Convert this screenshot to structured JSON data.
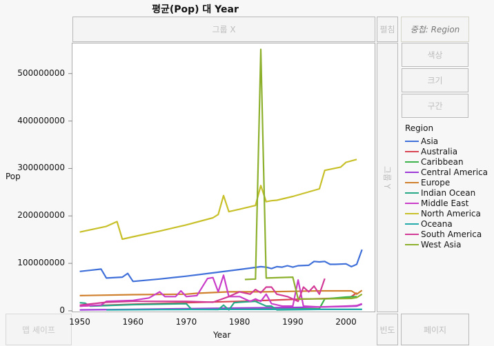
{
  "title": "평균(Pop) 대 Year",
  "zones": {
    "group_x": "그룹 X",
    "wrap": "펼침",
    "overlay": "중첩: Region",
    "group_y": "그룹 Y",
    "color": "색상",
    "size": "크기",
    "interval": "구간",
    "map_shape": "맵 셰이프",
    "freq": "빈도",
    "page": "페이지"
  },
  "chart_data": {
    "type": "line",
    "title": "평균(Pop) 대 Year",
    "xlabel": "Year",
    "ylabel": "Pop",
    "xlim": [
      1948.5,
      2005.5
    ],
    "ylim": [
      -3000000,
      565000000
    ],
    "xticks": [
      "1950",
      "1960",
      "1970",
      "1980",
      "1990",
      "2000"
    ],
    "yticks": [
      "0",
      "100000000",
      "200000000",
      "300000000",
      "400000000",
      "500000000"
    ],
    "legend_title": "Region",
    "legend_position": "right",
    "series": [
      {
        "name": "Asia",
        "color": "#3f6fd9",
        "x": [
          1950,
          1954,
          1955,
          1958,
          1959,
          1960,
          1965,
          1970,
          1975,
          1980,
          1982,
          1984,
          1985,
          1986,
          1987,
          1988,
          1989,
          1990,
          1991,
          1993,
          1994,
          1995,
          1996,
          1997,
          1998,
          2000,
          2001,
          2002,
          2003
        ],
        "y": [
          83000000,
          88000000,
          69000000,
          71000000,
          79000000,
          62000000,
          67000000,
          73000000,
          80000000,
          87000000,
          90000000,
          93000000,
          92000000,
          89000000,
          93000000,
          92000000,
          95000000,
          92000000,
          95000000,
          96000000,
          104000000,
          103000000,
          104000000,
          98000000,
          98000000,
          99000000,
          93000000,
          98000000,
          129000000
        ]
      },
      {
        "name": "Australia",
        "color": "#d94452",
        "x": [
          1950,
          1960,
          1970,
          1980,
          1990,
          2000,
          2001,
          2002
        ],
        "y": [
          10000000,
          14000000,
          17000000,
          20000000,
          24000000,
          27000000,
          30000000,
          38000000
        ]
      },
      {
        "name": "Caribbean",
        "color": "#3bb34a",
        "x": [
          1972,
          1980,
          1990,
          1995,
          1996,
          2000,
          2002
        ],
        "y": [
          3000000,
          3500000,
          4000000,
          4500000,
          25000000,
          29000000,
          30000000
        ]
      },
      {
        "name": "Central America",
        "color": "#9d39d6",
        "x": [
          1950,
          1960,
          1970,
          1980,
          1990,
          2000,
          2002,
          2003
        ],
        "y": [
          2000000,
          3000000,
          4500000,
          6000000,
          7000000,
          9000000,
          10000000,
          14000000
        ]
      },
      {
        "name": "Europe",
        "color": "#d0802d",
        "x": [
          1950,
          1960,
          1970,
          1972,
          1978,
          1980,
          1985,
          1990,
          1995,
          2000,
          2001,
          2002,
          2003
        ],
        "y": [
          32000000,
          34000000,
          35000000,
          37000000,
          40000000,
          40000000,
          40000000,
          41000000,
          42000000,
          42000000,
          42000000,
          35000000,
          43000000
        ]
      },
      {
        "name": "Indian Ocean",
        "color": "#26a886",
        "x": [
          1950,
          1951,
          1952,
          1960,
          1970,
          1971,
          1976,
          1977,
          1978,
          1979,
          1980,
          1983,
          1985,
          1986,
          1987,
          1995,
          2003
        ],
        "y": [
          17000000,
          16000000,
          10000000,
          13000000,
          15000000,
          3000000,
          2500000,
          12000000,
          2000000,
          17000000,
          18000000,
          20000000,
          10000000,
          10000000,
          2000000,
          3000000,
          3000000
        ]
      },
      {
        "name": "Middle East",
        "color": "#c93cc8",
        "x": [
          1950,
          1954,
          1955,
          1960,
          1963,
          1965,
          1966,
          1968,
          1969,
          1970,
          1972,
          1974,
          1975,
          1976,
          1977,
          1978,
          1980,
          1982,
          1983,
          1984,
          1985,
          1986,
          1988,
          1990,
          1991,
          1992,
          1995,
          2000,
          2002,
          2003
        ],
        "y": [
          10000000,
          12000000,
          20000000,
          22000000,
          27000000,
          40000000,
          30000000,
          30000000,
          42000000,
          30000000,
          32000000,
          68000000,
          70000000,
          40000000,
          75000000,
          30000000,
          30000000,
          20000000,
          25000000,
          20000000,
          35000000,
          15000000,
          10000000,
          10000000,
          65000000,
          10000000,
          8000000,
          10000000,
          11000000,
          15000000
        ]
      },
      {
        "name": "North America",
        "color": "#c8c029",
        "x": [
          1950,
          1955,
          1957,
          1958,
          1960,
          1965,
          1970,
          1975,
          1976,
          1977,
          1978,
          1980,
          1983,
          1984,
          1985,
          1986,
          1987,
          1990,
          1995,
          1996,
          1999,
          2000,
          2002
        ],
        "y": [
          166000000,
          178000000,
          188000000,
          151000000,
          156000000,
          168000000,
          181000000,
          196000000,
          203000000,
          243000000,
          209000000,
          214000000,
          222000000,
          264000000,
          230000000,
          232000000,
          233000000,
          241000000,
          257000000,
          296000000,
          303000000,
          313000000,
          319000000
        ]
      },
      {
        "name": "Oceana",
        "color": "#23a9a9",
        "x": [
          1955,
          1965,
          1975,
          1985,
          1995,
          2003
        ],
        "y": [
          2000000,
          2500000,
          3000000,
          3000000,
          3000000,
          3000000
        ]
      },
      {
        "name": "South America",
        "color": "#d23996",
        "x": [
          1950,
          1955,
          1960,
          1970,
          1975,
          1978,
          1980,
          1982,
          1983,
          1984,
          1985,
          1986,
          1987,
          1989,
          1990,
          1991,
          1992,
          1993,
          1994,
          1995,
          1996
        ],
        "y": [
          12000000,
          18000000,
          20000000,
          20000000,
          18000000,
          30000000,
          40000000,
          35000000,
          45000000,
          38000000,
          50000000,
          50000000,
          35000000,
          30000000,
          25000000,
          20000000,
          50000000,
          40000000,
          52000000,
          35000000,
          68000000
        ]
      },
      {
        "name": "West Asia",
        "color": "#8cb02c",
        "x": [
          1981,
          1983,
          1984,
          1985,
          1990,
          1991,
          1995,
          2001,
          2002,
          2003
        ],
        "y": [
          66000000,
          67000000,
          551000000,
          69000000,
          71000000,
          25000000,
          25000000,
          26000000,
          28000000,
          35000000
        ]
      }
    ]
  }
}
